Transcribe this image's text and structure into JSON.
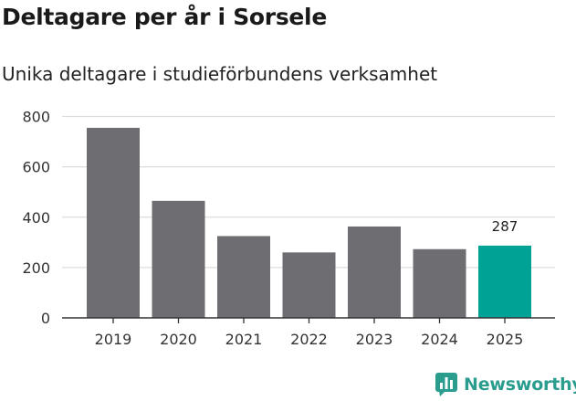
{
  "chart_data": {
    "type": "bar",
    "title": "Deltagare per år i Sorsele",
    "subtitle": "Unika deltagare i studieförbundens verksamhet",
    "categories": [
      "2019",
      "2020",
      "2021",
      "2022",
      "2023",
      "2024",
      "2025"
    ],
    "values": [
      755,
      465,
      325,
      260,
      363,
      273,
      287
    ],
    "highlight_index": 6,
    "data_labels": {
      "6": "287"
    },
    "yticks": [
      0,
      200,
      400,
      600,
      800
    ],
    "ylim": [
      0,
      820
    ],
    "grid": true,
    "colors": {
      "bar": "#6e6d72",
      "highlight": "#00a296",
      "grid": "#dddddd",
      "axis": "#333333"
    }
  },
  "branding": {
    "logo_text": "Newsworthy",
    "logo_icon": "bar-chart-speech-bubble-icon",
    "logo_color": "#2a9d8f"
  }
}
